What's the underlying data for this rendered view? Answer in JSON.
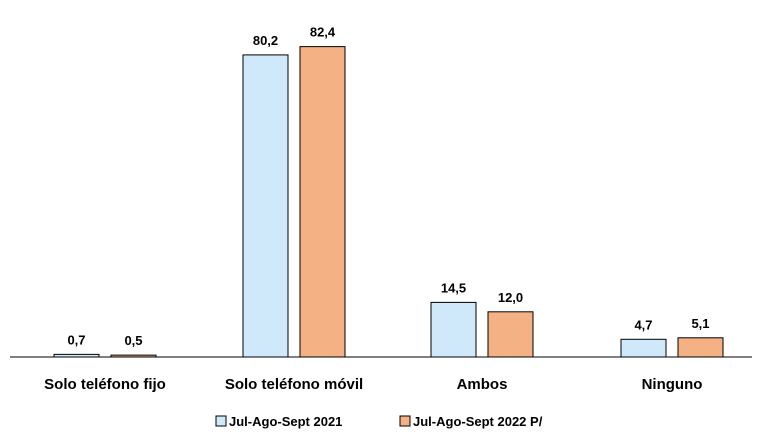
{
  "chart_data": {
    "type": "bar",
    "categories": [
      "Solo teléfono fijo",
      "Solo teléfono móvil",
      "Ambos",
      "Ninguno"
    ],
    "series": [
      {
        "name": "Jul-Ago-Sept 2021",
        "values": [
          0.7,
          80.2,
          14.5,
          4.7
        ],
        "labels": [
          "0,7",
          "80,2",
          "14,5",
          "4,7"
        ],
        "color": "#cfe9fb"
      },
      {
        "name": "Jul-Ago-Sept 2022 P/",
        "values": [
          0.5,
          82.4,
          12.0,
          5.1
        ],
        "labels": [
          "0,5",
          "82,4",
          "12,0",
          "5,1"
        ],
        "color": "#f4b183"
      }
    ],
    "title": "",
    "xlabel": "",
    "ylabel": "",
    "ylim": [
      0,
      90
    ],
    "grid": false,
    "legend_position": "bottom"
  }
}
